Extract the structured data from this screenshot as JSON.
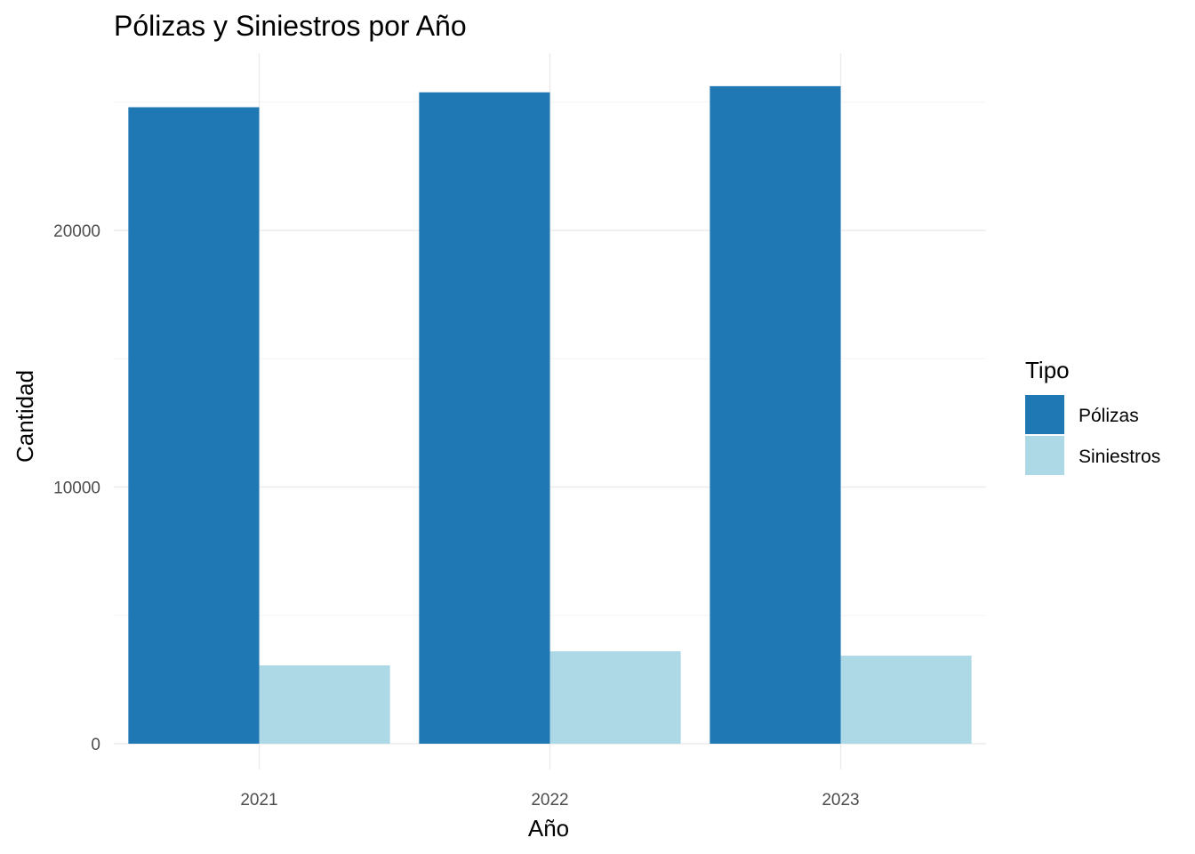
{
  "chart_data": {
    "type": "bar",
    "title": "Pólizas y Siniestros por Año",
    "xlabel": "Año",
    "ylabel": "Cantidad",
    "categories": [
      "2021",
      "2022",
      "2023"
    ],
    "series": [
      {
        "name": "Pólizas",
        "values": [
          24800,
          25380,
          25620
        ],
        "color": "#1f78b4"
      },
      {
        "name": "Siniestros",
        "values": [
          3050,
          3600,
          3430
        ],
        "color": "#add8e6"
      }
    ],
    "ylim": [
      0,
      27000
    ],
    "yticks": [
      0,
      10000,
      20000
    ],
    "ytick_labels": [
      "0",
      "10000",
      "20000"
    ],
    "grid": true,
    "legend": {
      "title": "Tipo",
      "position": "right"
    }
  }
}
